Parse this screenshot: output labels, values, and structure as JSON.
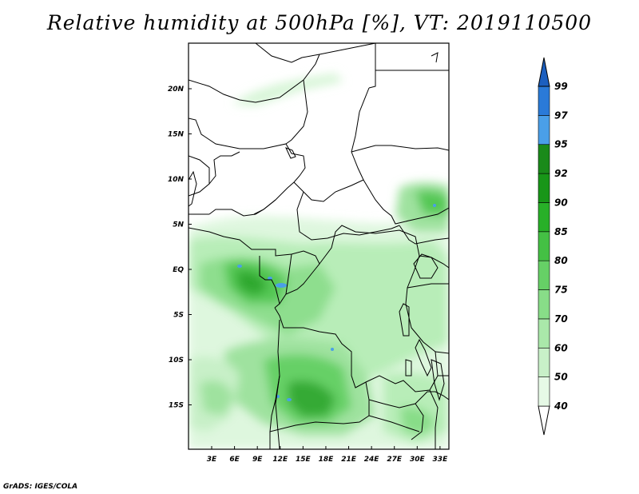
{
  "title": "Relative humidity at 500hPa [%], VT: 2019110500",
  "credit": "GrADS: IGES/COLA",
  "map": {
    "lat_ticks": [
      {
        "label": "20N",
        "value": 20
      },
      {
        "label": "15N",
        "value": 15
      },
      {
        "label": "10N",
        "value": 10
      },
      {
        "label": "5N",
        "value": 5
      },
      {
        "label": "EQ",
        "value": 0
      },
      {
        "label": "5S",
        "value": -5
      },
      {
        "label": "10S",
        "value": -10
      },
      {
        "label": "15S",
        "value": -15
      }
    ],
    "lon_ticks": [
      {
        "label": "3E",
        "value": 3
      },
      {
        "label": "6E",
        "value": 6
      },
      {
        "label": "9E",
        "value": 9
      },
      {
        "label": "12E",
        "value": 12
      },
      {
        "label": "15E",
        "value": 15
      },
      {
        "label": "18E",
        "value": 18
      },
      {
        "label": "21E",
        "value": 21
      },
      {
        "label": "24E",
        "value": 24
      },
      {
        "label": "27E",
        "value": 27
      },
      {
        "label": "30E",
        "value": 30
      },
      {
        "label": "33E",
        "value": 33
      }
    ]
  },
  "colorbar": {
    "levels": [
      "40",
      "50",
      "60",
      "70",
      "75",
      "80",
      "85",
      "90",
      "92",
      "95",
      "97",
      "99"
    ],
    "colors": [
      "#ffffff",
      "#e6f9e6",
      "#c8f0c8",
      "#aae8aa",
      "#88dd88",
      "#66d066",
      "#44c044",
      "#28b028",
      "#189618",
      "#1a8a1a",
      "#4a9fe8",
      "#2a7ad8",
      "#1c5fbf"
    ]
  }
}
